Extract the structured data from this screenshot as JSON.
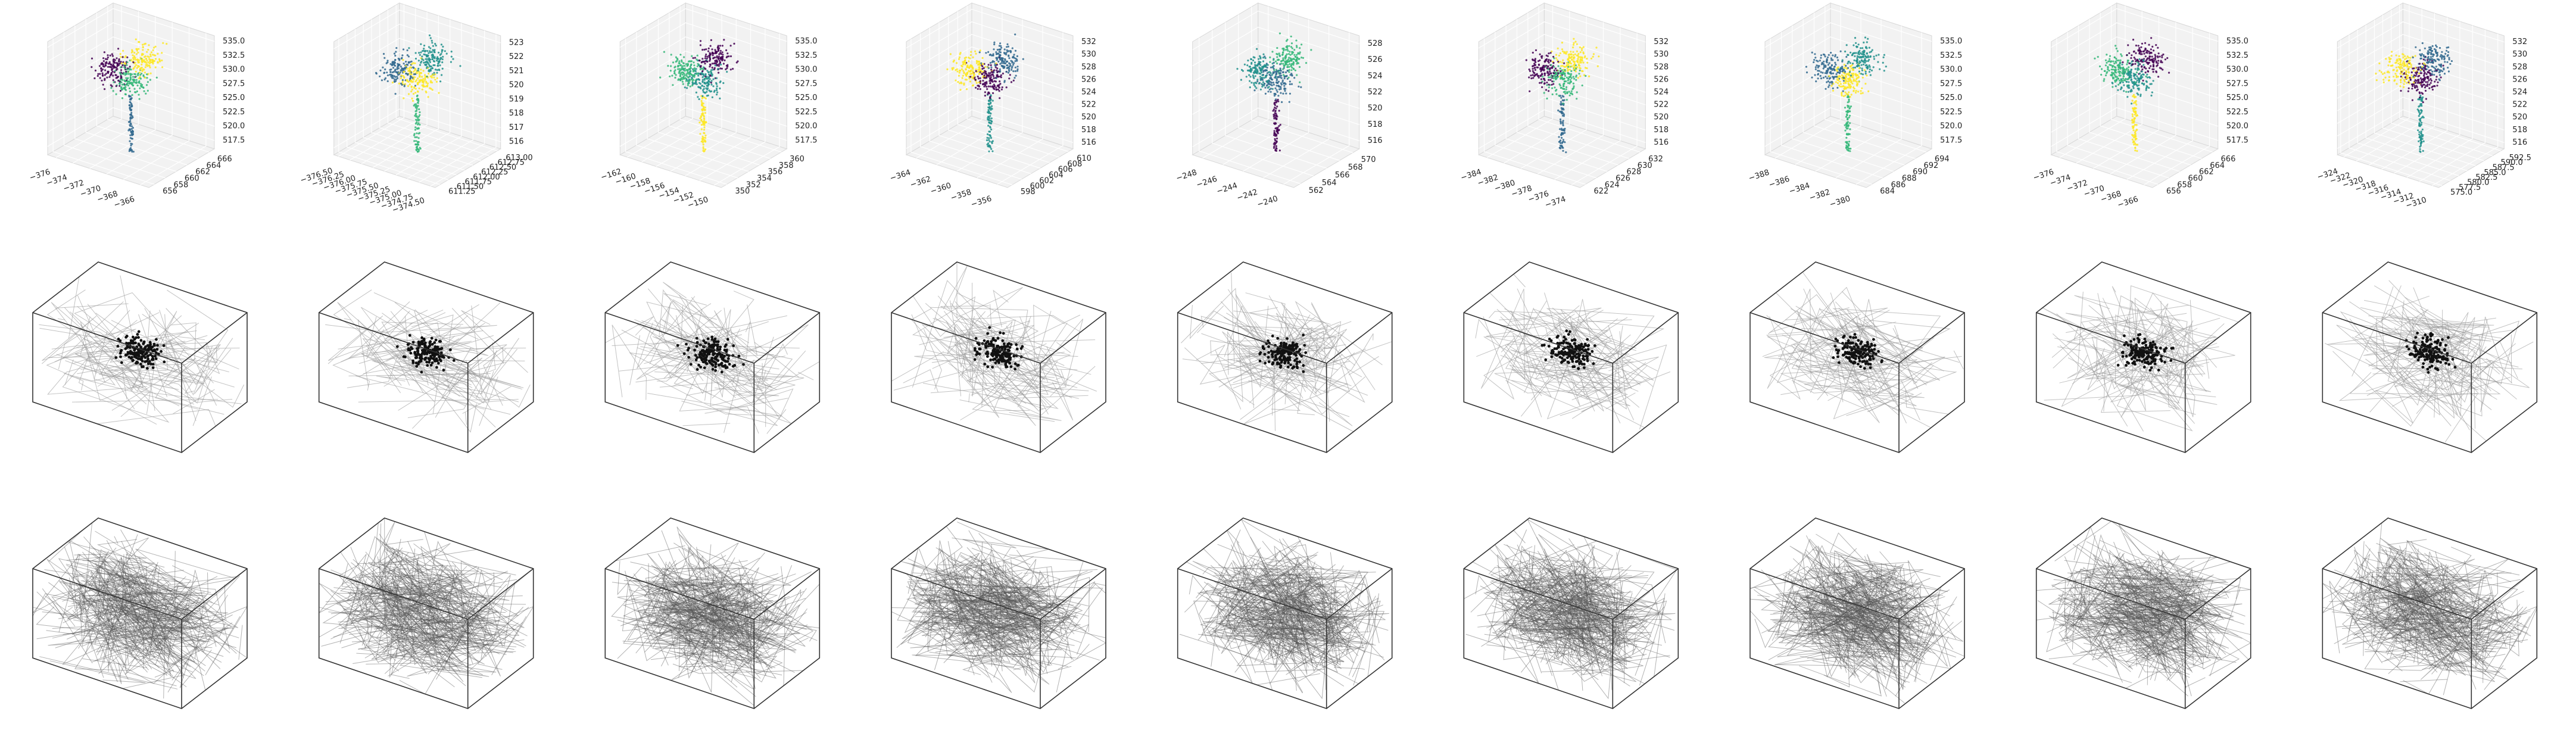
{
  "chart_data": [
    {
      "type": "scatter3d",
      "xticks": [
        {
          "value": -376,
          "label": "−376"
        },
        {
          "value": -374,
          "label": "−374"
        },
        {
          "value": -372,
          "label": "−372"
        },
        {
          "value": -370,
          "label": "−370"
        },
        {
          "value": -368,
          "label": "−368"
        },
        {
          "value": -366,
          "label": "−366"
        }
      ],
      "xlim": [
        -377,
        -365
      ],
      "yticks": [
        656,
        658,
        660,
        662,
        664,
        666
      ],
      "ylim": [
        655,
        667
      ],
      "zticks": [
        517.5,
        {
          "value": 520,
          "label": "520.0"
        },
        522.5,
        {
          "value": 525,
          "label": "525.0"
        },
        527.5,
        {
          "value": 530,
          "label": "530.0"
        },
        532.5,
        {
          "value": 535,
          "label": "535.0"
        }
      ],
      "zlim": [
        516,
        536
      ]
    },
    {
      "type": "scatter3d",
      "xticks": [
        {
          "value": -376.5,
          "label": "−376.50"
        },
        {
          "value": -376.25,
          "label": "−376.25"
        },
        {
          "value": -376,
          "label": "−376.00"
        },
        {
          "value": -375.75,
          "label": "−375.75"
        },
        {
          "value": -375.5,
          "label": "−375.50"
        },
        {
          "value": -375.25,
          "label": "−375.25"
        },
        {
          "value": -375,
          "label": "−375.00"
        },
        {
          "value": -374.75,
          "label": "−374.75"
        },
        {
          "value": -374.5,
          "label": "−374.50"
        }
      ],
      "xlim": [
        -376.6,
        -374.4
      ],
      "yticks": [
        611.25,
        {
          "value": 611.5,
          "label": "611.50"
        },
        611.75,
        {
          "value": 612,
          "label": "612.00"
        },
        612.25,
        {
          "value": 612.5,
          "label": "612.50"
        },
        612.75,
        {
          "value": 613,
          "label": "613.00"
        }
      ],
      "ylim": [
        611.1,
        613.1
      ],
      "zticks": [
        516,
        517,
        518,
        519,
        520,
        521,
        522,
        523
      ],
      "zlim": [
        515.5,
        523.5
      ]
    },
    {
      "type": "scatter3d",
      "xticks": [
        {
          "value": -162,
          "label": "−162"
        },
        {
          "value": -160,
          "label": "−160"
        },
        {
          "value": -158,
          "label": "−158"
        },
        {
          "value": -156,
          "label": "−156"
        },
        {
          "value": -154,
          "label": "−154"
        },
        {
          "value": -152,
          "label": "−152"
        },
        {
          "value": -150,
          "label": "−150"
        }
      ],
      "xlim": [
        -163,
        -149
      ],
      "yticks": [
        350,
        352,
        354,
        356,
        358,
        360
      ],
      "ylim": [
        349,
        361
      ],
      "zticks": [
        517.5,
        {
          "value": 520,
          "label": "520.0"
        },
        522.5,
        {
          "value": 525,
          "label": "525.0"
        },
        527.5,
        {
          "value": 530,
          "label": "530.0"
        },
        532.5,
        {
          "value": 535,
          "label": "535.0"
        }
      ],
      "zlim": [
        516,
        536
      ]
    },
    {
      "type": "scatter3d",
      "xticks": [
        {
          "value": -364,
          "label": "−364"
        },
        {
          "value": -362,
          "label": "−362"
        },
        {
          "value": -360,
          "label": "−360"
        },
        {
          "value": -358,
          "label": "−358"
        },
        {
          "value": -356,
          "label": "−356"
        }
      ],
      "xlim": [
        -365,
        -355
      ],
      "yticks": [
        598,
        600,
        602,
        604,
        606,
        608,
        610
      ],
      "ylim": [
        597,
        611
      ],
      "zticks": [
        516,
        518,
        520,
        522,
        524,
        526,
        528,
        530,
        532
      ],
      "zlim": [
        515,
        533
      ]
    },
    {
      "type": "scatter3d",
      "xticks": [
        {
          "value": -248,
          "label": "−248"
        },
        {
          "value": -246,
          "label": "−246"
        },
        {
          "value": -244,
          "label": "−244"
        },
        {
          "value": -242,
          "label": "−242"
        },
        {
          "value": -240,
          "label": "−240"
        }
      ],
      "xlim": [
        -249,
        -239
      ],
      "yticks": [
        562,
        564,
        566,
        568,
        570
      ],
      "ylim": [
        561,
        571
      ],
      "zticks": [
        516,
        518,
        520,
        522,
        524,
        526,
        528
      ],
      "zlim": [
        515,
        529
      ]
    },
    {
      "type": "scatter3d",
      "xticks": [
        {
          "value": -384,
          "label": "−384"
        },
        {
          "value": -382,
          "label": "−382"
        },
        {
          "value": -380,
          "label": "−380"
        },
        {
          "value": -378,
          "label": "−378"
        },
        {
          "value": -376,
          "label": "−376"
        },
        {
          "value": -374,
          "label": "−374"
        }
      ],
      "xlim": [
        -385,
        -373
      ],
      "yticks": [
        622,
        624,
        626,
        628,
        630,
        632
      ],
      "ylim": [
        621,
        633
      ],
      "zticks": [
        516,
        518,
        520,
        522,
        524,
        526,
        528,
        530,
        532
      ],
      "zlim": [
        515,
        533
      ]
    },
    {
      "type": "scatter3d",
      "xticks": [
        {
          "value": -388,
          "label": "−388"
        },
        {
          "value": -386,
          "label": "−386"
        },
        {
          "value": -384,
          "label": "−384"
        },
        {
          "value": -382,
          "label": "−382"
        },
        {
          "value": -380,
          "label": "−380"
        }
      ],
      "xlim": [
        -389,
        -379
      ],
      "yticks": [
        684,
        686,
        688,
        690,
        692,
        694
      ],
      "ylim": [
        683,
        695
      ],
      "zticks": [
        517.5,
        {
          "value": 520,
          "label": "520.0"
        },
        522.5,
        {
          "value": 525,
          "label": "525.0"
        },
        527.5,
        {
          "value": 530,
          "label": "530.0"
        },
        532.5,
        {
          "value": 535,
          "label": "535.0"
        }
      ],
      "zlim": [
        516,
        536
      ]
    },
    {
      "type": "scatter3d",
      "xticks": [
        {
          "value": -376,
          "label": "−376"
        },
        {
          "value": -374,
          "label": "−374"
        },
        {
          "value": -372,
          "label": "−372"
        },
        {
          "value": -370,
          "label": "−370"
        },
        {
          "value": -368,
          "label": "−368"
        },
        {
          "value": -366,
          "label": "−366"
        }
      ],
      "xlim": [
        -377,
        -365
      ],
      "yticks": [
        656,
        658,
        660,
        662,
        664,
        666
      ],
      "ylim": [
        655,
        667
      ],
      "zticks": [
        517.5,
        {
          "value": 520,
          "label": "520.0"
        },
        522.5,
        {
          "value": 525,
          "label": "525.0"
        },
        527.5,
        {
          "value": 530,
          "label": "530.0"
        },
        532.5,
        {
          "value": 535,
          "label": "535.0"
        }
      ],
      "zlim": [
        516,
        536
      ]
    },
    {
      "type": "scatter3d",
      "xticks": [
        {
          "value": -324,
          "label": "−324"
        },
        {
          "value": -322,
          "label": "−322"
        },
        {
          "value": -320,
          "label": "−320"
        },
        {
          "value": -318,
          "label": "−318"
        },
        {
          "value": -316,
          "label": "−316"
        },
        {
          "value": -314,
          "label": "−314"
        },
        {
          "value": -312,
          "label": "−312"
        },
        {
          "value": -310,
          "label": "−310"
        }
      ],
      "xlim": [
        -325,
        -309
      ],
      "yticks": [
        {
          "value": 575,
          "label": "575.0"
        },
        577.5,
        {
          "value": 580,
          "label": "580.0"
        },
        582.5,
        {
          "value": 585,
          "label": "585.0"
        },
        587.5,
        {
          "value": 590,
          "label": "590.0"
        },
        592.5
      ],
      "ylim": [
        574,
        593.5
      ],
      "zticks": [
        516,
        518,
        520,
        522,
        524,
        526,
        528,
        530,
        532
      ],
      "zlim": [
        515,
        533
      ]
    }
  ]
}
